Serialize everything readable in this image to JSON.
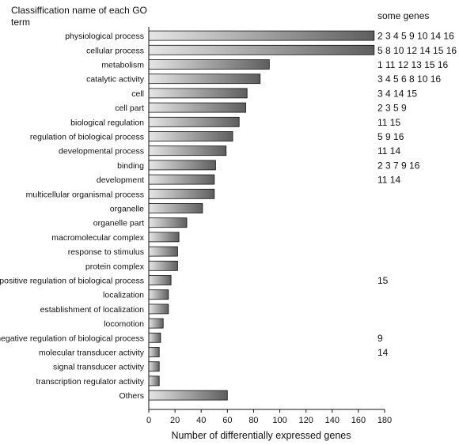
{
  "chart_data": {
    "type": "bar",
    "orientation": "horizontal",
    "category_header": "Classiffication name of each GO term",
    "genes_header": "some genes",
    "xlabel": "Number of differentially expressed genes",
    "xlim": [
      0,
      180
    ],
    "xticks": [
      "0",
      "20",
      "40",
      "60",
      "80",
      "100",
      "120",
      "140",
      "160",
      "180"
    ],
    "categories": [
      "physiological process",
      "cellular process",
      "metabolism",
      "catalytic activity",
      "cell",
      "cell part",
      "biological regulation",
      "regulation of biological process",
      "developmental process",
      "binding",
      "development",
      "multicellular organismal process",
      "organelle",
      "organelle part",
      "macromolecular complex",
      "response to stimulus",
      "protein complex",
      "positive regulation of biological process",
      "localization",
      "establishment of localization",
      "locomotion",
      "negative regulation of biological process",
      "molecular transducer activity",
      "signal transducer activity",
      "transcription regulator activity",
      "Others"
    ],
    "values": [
      172,
      172,
      92,
      85,
      75,
      74,
      69,
      64,
      59,
      51,
      50,
      50,
      41,
      29,
      23,
      22,
      22,
      17,
      15,
      15,
      11,
      9,
      8,
      8,
      8,
      60
    ],
    "genes": [
      "2 3 4 5 9 10 14 16",
      "5 8 10 12 14 15 16",
      "1 11 12 13 15 16",
      "3 4 5 6 8 10 16",
      "3 4 14 15",
      "2 3 5 9",
      "11 15",
      "5 9 16",
      "11 14",
      "2 3 7 9 16",
      "11 14",
      "",
      "",
      "",
      "",
      "",
      "",
      "15",
      "",
      "",
      "",
      "9",
      "14",
      "",
      "",
      ""
    ],
    "bar_gradient": [
      "#e6e6e6",
      "#5e5e5e"
    ],
    "grid": false
  }
}
